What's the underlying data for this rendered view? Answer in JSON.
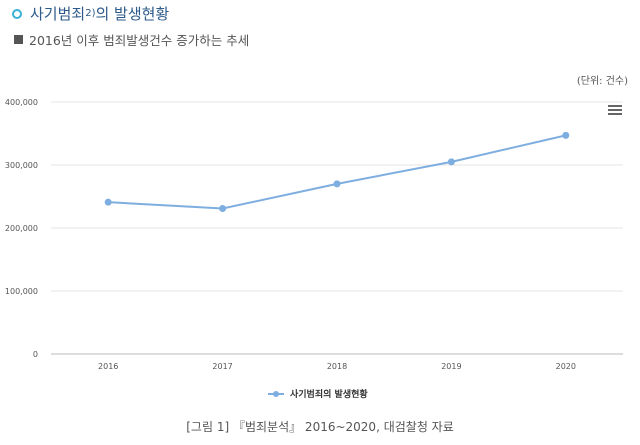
{
  "header": {
    "title": "사기범죄",
    "title_sup": "2)",
    "title_suffix": "의 발생현황",
    "subtitle": "2016년 이후 범죄발생건수 증가하는 추세"
  },
  "unit_label": "(단위: 건수)",
  "menu_icon": "hamburger-menu-icon",
  "caption": "[그림 1] 『범죄분석』 2016~2020, 대검찰청 자료",
  "chart_data": {
    "type": "line",
    "categories": [
      "2016",
      "2017",
      "2018",
      "2019",
      "2020"
    ],
    "series": [
      {
        "name": "사기범죄의 발생현황",
        "values": [
          241000,
          231000,
          270000,
          305000,
          347000
        ],
        "color": "#7eaee0"
      }
    ],
    "ylim": [
      0,
      400000
    ],
    "yticks": [
      0,
      100000,
      200000,
      300000,
      400000
    ],
    "ytick_labels": [
      "0",
      "100,000",
      "200,000",
      "300,000",
      "400,000"
    ],
    "grid": true,
    "legend": "bottom"
  }
}
